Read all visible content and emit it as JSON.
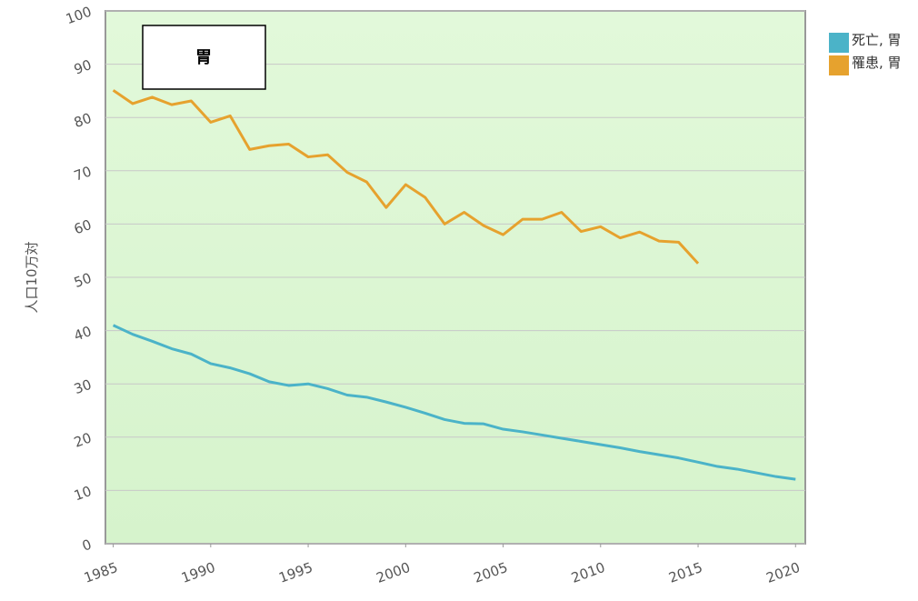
{
  "chart_data": {
    "type": "line",
    "title": "胃",
    "ylabel": "人口10万対",
    "x": [
      1985,
      1986,
      1987,
      1988,
      1989,
      1990,
      1991,
      1992,
      1993,
      1994,
      1995,
      1996,
      1997,
      1998,
      1999,
      2000,
      2001,
      2002,
      2003,
      2004,
      2005,
      2006,
      2007,
      2008,
      2009,
      2010,
      2011,
      2012,
      2013,
      2014,
      2015,
      2016,
      2017,
      2018,
      2019,
      2020
    ],
    "series": [
      {
        "name": "死亡, 胃",
        "color": "#4bb3c8",
        "values": [
          41.0,
          39.3,
          38.0,
          36.6,
          35.6,
          33.8,
          33.0,
          31.9,
          30.4,
          29.7,
          30.0,
          29.1,
          27.9,
          27.5,
          26.6,
          25.6,
          24.5,
          23.3,
          22.6,
          22.5,
          21.5,
          21.0,
          20.4,
          19.8,
          19.2,
          18.6,
          18.0,
          17.3,
          16.7,
          16.1,
          15.3,
          14.5,
          14.0,
          13.3,
          12.6,
          12.1
        ]
      },
      {
        "name": "罹患, 胃",
        "color": "#e6a22e",
        "values": [
          85.1,
          82.6,
          83.8,
          82.4,
          83.1,
          79.1,
          80.3,
          74.0,
          74.7,
          75.0,
          72.6,
          73.0,
          69.7,
          67.9,
          63.1,
          67.4,
          65.0,
          60.0,
          62.2,
          59.7,
          58.0,
          60.9,
          60.9,
          62.2,
          58.6,
          59.5,
          57.4,
          58.5,
          56.8,
          56.6,
          52.6,
          null,
          null,
          null,
          null,
          null
        ]
      }
    ],
    "xlim": [
      1984.6,
      2020.5
    ],
    "xticks": [
      1985,
      1990,
      1995,
      2000,
      2005,
      2010,
      2015,
      2020
    ],
    "ylim": [
      0,
      100
    ],
    "yticks": [
      0,
      10,
      20,
      30,
      40,
      50,
      60,
      70,
      80,
      90,
      100
    ],
    "grid": true,
    "legend": "right"
  }
}
